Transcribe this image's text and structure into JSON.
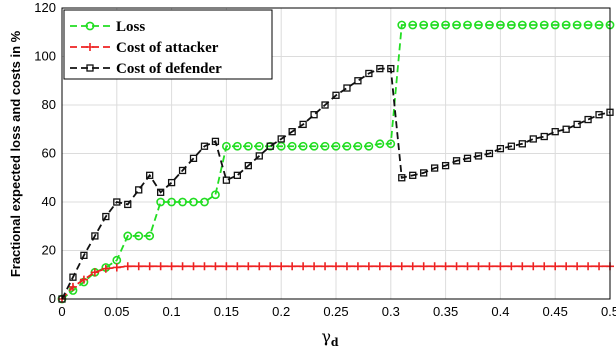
{
  "chart_data": {
    "type": "line",
    "ylabel": "Fractional expected loss and costs in %",
    "xlabel": {
      "symbol": "γ",
      "subscript": "d"
    },
    "xlim": [
      0,
      0.5
    ],
    "ylim": [
      0,
      120
    ],
    "xticks": [
      "0",
      "0.05",
      "0.1",
      "0.15",
      "0.2",
      "0.25",
      "0.3",
      "0.35",
      "0.4",
      "0.45",
      "0.5"
    ],
    "yticks": [
      "0",
      "20",
      "40",
      "60",
      "80",
      "100",
      "120"
    ],
    "grid": true,
    "legend_position": "top-left",
    "x": [
      0,
      0.01,
      0.02,
      0.03,
      0.04,
      0.05,
      0.06,
      0.07,
      0.08,
      0.09,
      0.1,
      0.11,
      0.12,
      0.13,
      0.14,
      0.15,
      0.16,
      0.17,
      0.18,
      0.19,
      0.2,
      0.21,
      0.22,
      0.23,
      0.24,
      0.25,
      0.26,
      0.27,
      0.28,
      0.29,
      0.3,
      0.31,
      0.32,
      0.33,
      0.34,
      0.35,
      0.36,
      0.37,
      0.38,
      0.39,
      0.4,
      0.41,
      0.42,
      0.43,
      0.44,
      0.45,
      0.46,
      0.47,
      0.48,
      0.49,
      0.5
    ],
    "series": [
      {
        "name": "Loss",
        "color": "#22dd22",
        "marker": "circle",
        "values": [
          0,
          3.5,
          7,
          11,
          13,
          16,
          26,
          26,
          26,
          40,
          40,
          40,
          40,
          40,
          43,
          63,
          63,
          63,
          63,
          63,
          63,
          63,
          63,
          63,
          63,
          63,
          63,
          63,
          63,
          64,
          64,
          113,
          113,
          113,
          113,
          113,
          113,
          113,
          113,
          113,
          113,
          113,
          113,
          113,
          113,
          113,
          113,
          113,
          113,
          113,
          113
        ]
      },
      {
        "name": "Cost of attacker",
        "color": "#ee2222",
        "marker": "plus",
        "values": [
          0,
          5,
          8,
          11,
          12.5,
          13,
          13.5,
          13.5,
          13.5,
          13.5,
          13.5,
          13.5,
          13.5,
          13.5,
          13.5,
          13.5,
          13.5,
          13.5,
          13.5,
          13.5,
          13.5,
          13.5,
          13.5,
          13.5,
          13.5,
          13.5,
          13.5,
          13.5,
          13.5,
          13.5,
          13.5,
          13.5,
          13.5,
          13.5,
          13.5,
          13.5,
          13.5,
          13.5,
          13.5,
          13.5,
          13.5,
          13.5,
          13.5,
          13.5,
          13.5,
          13.5,
          13.5,
          13.5,
          13.5,
          13.5,
          13.5
        ]
      },
      {
        "name": "Cost of defender",
        "color": "#111111",
        "marker": "square",
        "values": [
          0,
          9,
          18,
          26,
          34,
          40,
          39,
          45,
          51,
          44,
          48,
          53,
          58,
          63,
          65,
          49,
          51,
          55,
          59,
          63,
          66,
          69,
          72,
          76,
          80,
          84,
          87,
          90,
          93,
          95,
          95,
          50,
          51,
          52,
          54,
          55,
          57,
          58,
          59,
          60,
          62,
          63,
          64,
          66,
          67,
          69,
          70,
          72,
          74,
          76,
          77
        ]
      }
    ]
  }
}
